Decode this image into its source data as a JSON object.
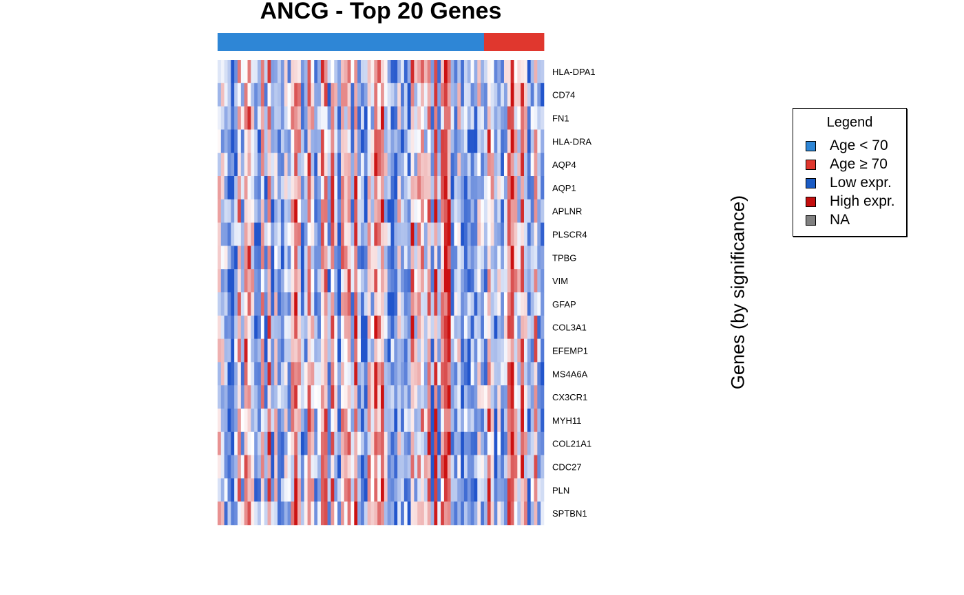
{
  "chart_data": {
    "type": "heatmap",
    "title": "ANCG - Top 20 Genes",
    "ylabel": "Genes (by significance)",
    "rows": [
      "HLA-DPA1",
      "CD74",
      "FN1",
      "HLA-DRA",
      "AQP4",
      "AQP1",
      "APLNR",
      "PLSCR4",
      "TPBG",
      "VIM",
      "GFAP",
      "COL3A1",
      "EFEMP1",
      "MS4A6A",
      "CX3CR1",
      "MYH11",
      "COL21A1",
      "CDC27",
      "PLN",
      "SPTBN1"
    ],
    "column_groups": [
      {
        "label": "Age < 70",
        "count": 80
      },
      {
        "label": "Age ≥ 70",
        "count": 18
      }
    ],
    "color_scale": {
      "low": "#2255cc",
      "mid": "#ffffff",
      "high": "#cc1111"
    },
    "legend": {
      "title": "Legend",
      "position": "right",
      "items": [
        {
          "label": "Age < 70",
          "color": "#2e86d6"
        },
        {
          "label": "Age ≥ 70",
          "color": "#e0372e"
        },
        {
          "label": "Low expr.",
          "color": "#1a5bc4"
        },
        {
          "label": "High expr.",
          "color": "#c40e0e"
        },
        {
          "label": "NA",
          "color": "#808080"
        }
      ]
    }
  }
}
